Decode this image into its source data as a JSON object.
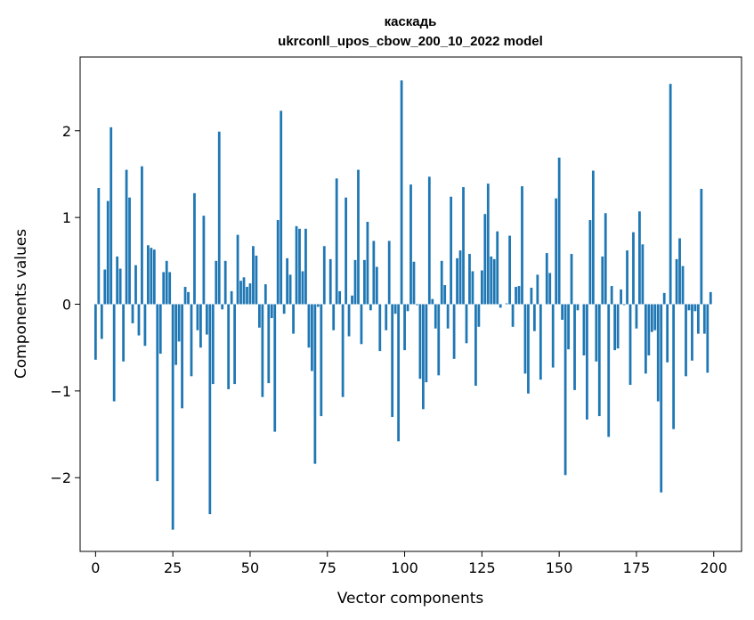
{
  "chart_data": {
    "type": "bar",
    "title": "каскадь",
    "subtitle": "ukrconll_upos_cbow_200_10_2022 model",
    "xlabel": "Vector components",
    "ylabel": "Components values",
    "xlim": [
      -5,
      209
    ],
    "ylim": [
      -2.85,
      2.85
    ],
    "xticks": [
      0,
      25,
      50,
      75,
      100,
      125,
      150,
      175,
      200
    ],
    "yticks": [
      -2,
      -1,
      0,
      1,
      2
    ],
    "xtick_labels": [
      "0",
      "25",
      "50",
      "75",
      "100",
      "125",
      "150",
      "175",
      "200"
    ],
    "ytick_labels": [
      "−2",
      "−1",
      "0",
      "1",
      "2"
    ],
    "grid": false,
    "bar_color": "#1f77b4",
    "x": [
      0,
      1,
      2,
      3,
      4,
      5,
      6,
      7,
      8,
      9,
      10,
      11,
      12,
      13,
      14,
      15,
      16,
      17,
      18,
      19,
      20,
      21,
      22,
      23,
      24,
      25,
      26,
      27,
      28,
      29,
      30,
      31,
      32,
      33,
      34,
      35,
      36,
      37,
      38,
      39,
      40,
      41,
      42,
      43,
      44,
      45,
      46,
      47,
      48,
      49,
      50,
      51,
      52,
      53,
      54,
      55,
      56,
      57,
      58,
      59,
      60,
      61,
      62,
      63,
      64,
      65,
      66,
      67,
      68,
      69,
      70,
      71,
      72,
      73,
      74,
      75,
      76,
      77,
      78,
      79,
      80,
      81,
      82,
      83,
      84,
      85,
      86,
      87,
      88,
      89,
      90,
      91,
      92,
      93,
      94,
      95,
      96,
      97,
      98,
      99,
      100,
      101,
      102,
      103,
      104,
      105,
      106,
      107,
      108,
      109,
      110,
      111,
      112,
      113,
      114,
      115,
      116,
      117,
      118,
      119,
      120,
      121,
      122,
      123,
      124,
      125,
      126,
      127,
      128,
      129,
      130,
      131,
      132,
      133,
      134,
      135,
      136,
      137,
      138,
      139,
      140,
      141,
      142,
      143,
      144,
      145,
      146,
      147,
      148,
      149,
      150,
      151,
      152,
      153,
      154,
      155,
      156,
      157,
      158,
      159,
      160,
      161,
      162,
      163,
      164,
      165,
      166,
      167,
      168,
      169,
      170,
      171,
      172,
      173,
      174,
      175,
      176,
      177,
      178,
      179,
      180,
      181,
      182,
      183,
      184,
      185,
      186,
      187,
      188,
      189,
      190,
      191,
      192,
      193,
      194,
      195,
      196,
      197,
      198,
      199
    ],
    "values": [
      -0.64,
      1.34,
      -0.4,
      0.4,
      1.19,
      2.04,
      -1.12,
      0.55,
      0.41,
      -0.66,
      1.55,
      1.23,
      -0.22,
      0.45,
      -0.36,
      1.59,
      -0.48,
      0.68,
      0.65,
      0.63,
      -2.04,
      -0.57,
      0.37,
      0.5,
      0.37,
      -2.6,
      -0.7,
      -0.43,
      -1.2,
      0.2,
      0.14,
      -0.83,
      1.28,
      -0.3,
      -0.5,
      1.02,
      -0.35,
      -2.42,
      -0.92,
      0.5,
      1.99,
      -0.06,
      0.5,
      -0.98,
      0.15,
      -0.92,
      0.8,
      0.27,
      0.31,
      0.2,
      0.24,
      0.67,
      0.56,
      -0.27,
      -1.07,
      0.23,
      -0.91,
      -0.16,
      -1.47,
      0.97,
      2.23,
      -0.11,
      0.53,
      0.34,
      -0.34,
      0.9,
      0.87,
      0.38,
      0.87,
      -0.5,
      -0.77,
      -1.84,
      -0.03,
      -1.29,
      0.67,
      0.0,
      0.52,
      -0.3,
      1.45,
      0.15,
      -1.07,
      1.23,
      -0.37,
      0.1,
      0.51,
      1.55,
      -0.46,
      0.51,
      0.95,
      -0.07,
      0.73,
      0.43,
      -0.54,
      0.0,
      -0.3,
      0.73,
      -1.3,
      -0.11,
      -1.58,
      2.58,
      -0.53,
      -0.08,
      1.38,
      0.49,
      -0.01,
      -0.86,
      -1.21,
      -0.9,
      1.47,
      0.06,
      -0.28,
      -0.82,
      0.5,
      0.22,
      -0.28,
      1.24,
      -0.63,
      0.53,
      0.62,
      1.35,
      -0.45,
      0.58,
      0.38,
      -0.94,
      -0.26,
      0.39,
      1.04,
      1.39,
      0.55,
      0.52,
      0.84,
      -0.04,
      0.0,
      0.01,
      0.79,
      -0.26,
      0.2,
      0.21,
      1.36,
      -0.8,
      -1.03,
      0.19,
      -0.31,
      0.34,
      -0.87,
      0.0,
      0.59,
      0.36,
      -0.73,
      1.22,
      1.69,
      -0.18,
      -1.97,
      -0.52,
      0.58,
      -0.99,
      -0.07,
      0.0,
      -0.59,
      -1.33,
      0.97,
      1.54,
      -0.66,
      -1.29,
      0.55,
      1.05,
      -1.53,
      0.21,
      -0.53,
      -0.51,
      0.17,
      -0.01,
      0.62,
      -0.93,
      0.83,
      -0.28,
      1.07,
      0.69,
      -0.8,
      -0.59,
      -0.32,
      -0.3,
      -1.12,
      -2.17,
      0.13,
      -0.67,
      2.54,
      -1.44,
      0.52,
      0.76,
      0.44,
      -0.83,
      -0.07,
      -0.65,
      -0.08,
      -0.34,
      1.33,
      -0.34,
      -0.79,
      0.14
    ]
  }
}
